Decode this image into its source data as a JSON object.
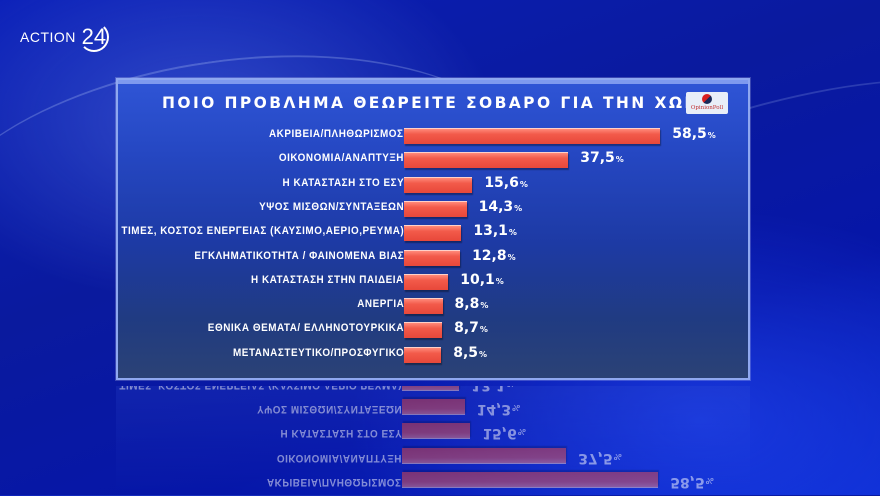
{
  "channel": {
    "logo_word": "ACTION",
    "logo_number": "24"
  },
  "panel": {
    "title": "ΠΟΙΟ ΠΡΟΒΛΗΜΑ ΘΕΩΡΕΙΤΕ ΣΟΒΑΡΟ ΓΙΑ ΤΗΝ ΧΩΡΑ;",
    "pollster": "OpinionPoll"
  },
  "colors": {
    "bar": "#f25a4a",
    "panel": "#2547c2",
    "background": "#0a1fb8",
    "text": "#ffffff"
  },
  "rows": [
    {
      "label": "ΑΚΡΙΒΕΙΑ/ΠΛΗΘΩΡΙΣΜΟΣ",
      "value": "58,5",
      "pct": "%"
    },
    {
      "label": "ΟΙΚΟΝΟΜΙΑ/ΑΝΑΠΤΥΞΗ",
      "value": "37,5",
      "pct": "%"
    },
    {
      "label": "Η ΚΑΤΑΣΤΑΣΗ ΣΤΟ ΕΣΥ",
      "value": "15,6",
      "pct": "%"
    },
    {
      "label": "ΥΨΟΣ ΜΙΣΘΩΝ/ΣΥΝΤΑΞΕΩΝ",
      "value": "14,3",
      "pct": "%"
    },
    {
      "label": "ΤΙΜΕΣ, ΚΟΣΤΟΣ ΕΝΕΡΓΕΙΑΣ (ΚΑΥΣΙΜΟ,ΑΕΡΙΟ,ΡΕΥΜΑ)",
      "value": "13,1",
      "pct": "%"
    },
    {
      "label": "ΕΓΚΛΗΜΑΤΙΚΟΤΗΤΑ / ΦΑΙΝΟΜΕΝΑ ΒΙΑΣ",
      "value": "12,8",
      "pct": "%"
    },
    {
      "label": "Η ΚΑΤΑΣΤΑΣΗ ΣΤΗΝ ΠΑΙΔΕΙΑ",
      "value": "10,1",
      "pct": "%"
    },
    {
      "label": "ΑΝΕΡΓΙΑ",
      "value": "8,8",
      "pct": "%"
    },
    {
      "label": "ΕΘΝΙΚΑ ΘΕΜΑΤΑ/ ΕΛΛΗΝΟΤΟΥΡΚΙΚΑ",
      "value": "8,7",
      "pct": "%"
    },
    {
      "label": "ΜΕΤΑΝΑΣΤΕΥΤΙΚΟ/ΠΡΟΣΦΥΓΙΚΟ",
      "value": "8,5",
      "pct": "%"
    }
  ],
  "chart_data": {
    "type": "bar",
    "orientation": "horizontal",
    "title": "ΠΟΙΟ ΠΡΟΒΛΗΜΑ ΘΕΩΡΕΙΤΕ ΣΟΒΑΡΟ ΓΙΑ ΤΗΝ ΧΩΡΑ;",
    "categories": [
      "ΑΚΡΙΒΕΙΑ/ΠΛΗΘΩΡΙΣΜΟΣ",
      "ΟΙΚΟΝΟΜΙΑ/ΑΝΑΠΤΥΞΗ",
      "Η ΚΑΤΑΣΤΑΣΗ ΣΤΟ ΕΣΥ",
      "ΥΨΟΣ ΜΙΣΘΩΝ/ΣΥΝΤΑΞΕΩΝ",
      "ΤΙΜΕΣ, ΚΟΣΤΟΣ ΕΝΕΡΓΕΙΑΣ (ΚΑΥΣΙΜΟ,ΑΕΡΙΟ,ΡΕΥΜΑ)",
      "ΕΓΚΛΗΜΑΤΙΚΟΤΗΤΑ / ΦΑΙΝΟΜΕΝΑ ΒΙΑΣ",
      "Η ΚΑΤΑΣΤΑΣΗ ΣΤΗΝ ΠΑΙΔΕΙΑ",
      "ΑΝΕΡΓΙΑ",
      "ΕΘΝΙΚΑ ΘΕΜΑΤΑ/ ΕΛΛΗΝΟΤΟΥΡΚΙΚΑ",
      "ΜΕΤΑΝΑΣΤΕΥΤΙΚΟ/ΠΡΟΣΦΥΓΙΚΟ"
    ],
    "values": [
      58.5,
      37.5,
      15.6,
      14.3,
      13.1,
      12.8,
      10.1,
      8.8,
      8.7,
      8.5
    ],
    "unit": "%",
    "xlabel": "",
    "ylabel": "",
    "xlim": [
      0,
      60
    ],
    "grid": false,
    "legend": null,
    "source": "OpinionPoll"
  }
}
